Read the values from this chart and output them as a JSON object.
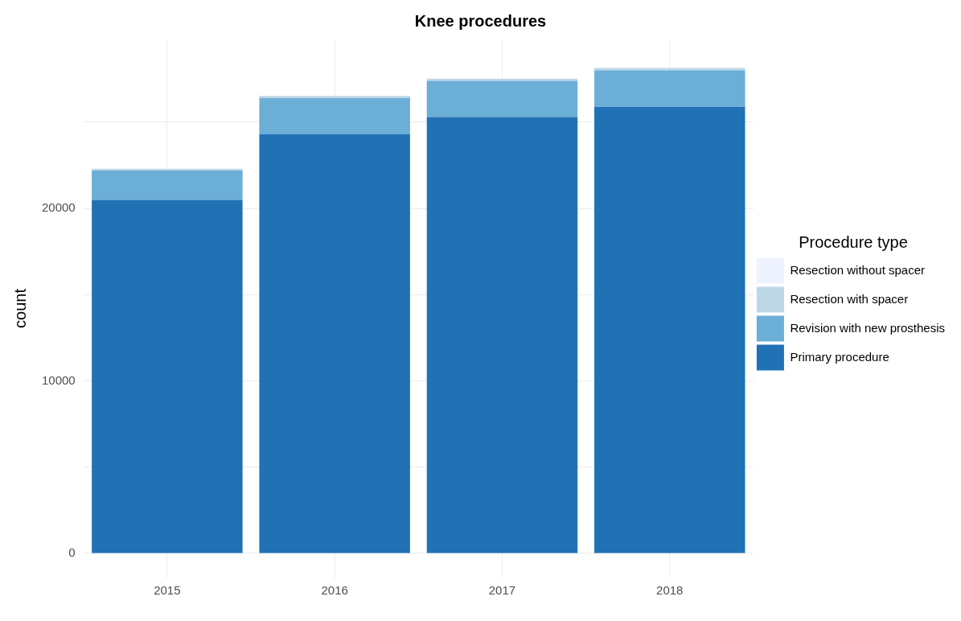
{
  "chart_data": {
    "type": "bar",
    "title": "Knee procedures",
    "ylabel": "count",
    "legend_title": "Procedure type",
    "categories": [
      "2015",
      "2016",
      "2017",
      "2018"
    ],
    "stacked": true,
    "series": [
      {
        "name": "Primary procedure",
        "color": "#2171b5",
        "values": [
          20500,
          24300,
          25300,
          25900
        ]
      },
      {
        "name": "Revision with new prosthesis",
        "color": "#6baed6",
        "values": [
          1700,
          2100,
          2100,
          2100
        ]
      },
      {
        "name": "Resection with spacer",
        "color": "#bdd7e7",
        "values": [
          100,
          120,
          130,
          150
        ]
      },
      {
        "name": "Resection without spacer",
        "color": "#eff3ff",
        "values": [
          null,
          null,
          null,
          null
        ]
      }
    ],
    "ylim": [
      -1400,
      29800
    ],
    "yticks": [
      0,
      {
        "value": 5000,
        "label": null
      },
      10000,
      {
        "value": 15000,
        "label": null
      },
      20000,
      {
        "value": 25000,
        "label": null
      }
    ],
    "grid": true,
    "legend": "right"
  }
}
